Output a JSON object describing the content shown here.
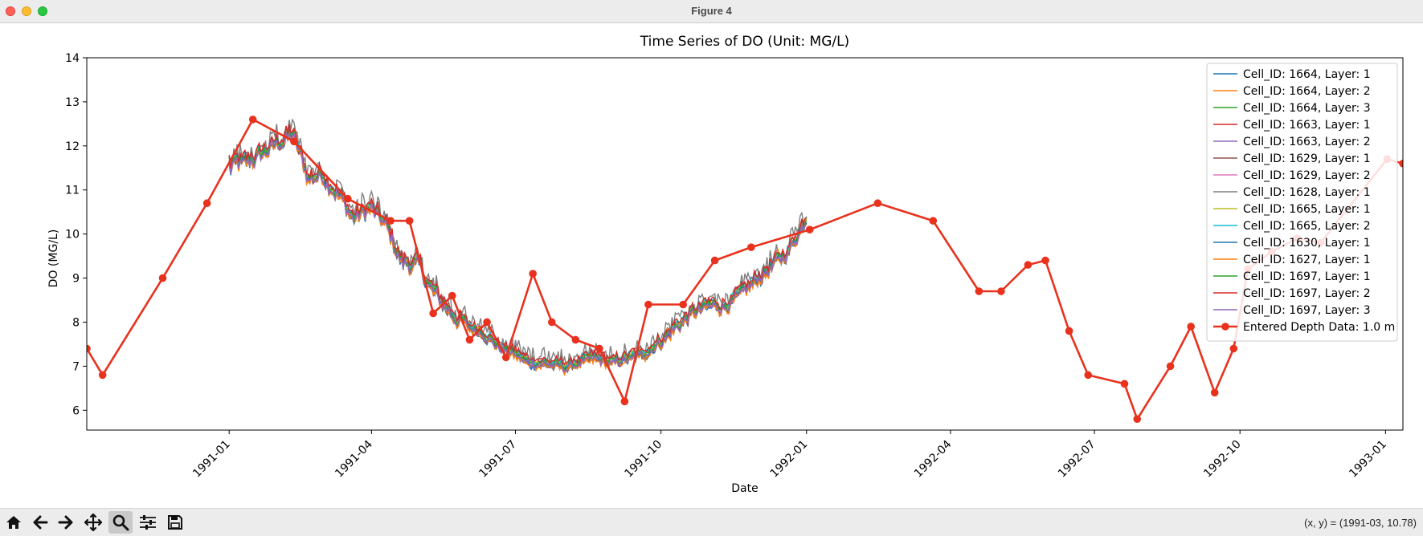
{
  "window": {
    "title": "Figure 4"
  },
  "toolbar": {
    "buttons": [
      "home-icon",
      "back-arrow-icon",
      "forward-arrow-icon",
      "pan-move-icon",
      "zoom-magnifier-icon",
      "configure-subplots-icon",
      "save-floppy-icon"
    ],
    "active": "zoom-magnifier-icon",
    "coords_text": "(x, y) = (1991-03, 10.78)"
  },
  "chart_data": {
    "type": "line",
    "title": "Time Series of DO (Unit: MG/L)",
    "xlabel": "Date",
    "ylabel": "DO (MG/L)",
    "xlim": [
      "1990-10-03",
      "1993-01-12"
    ],
    "ylim": [
      5.55,
      14
    ],
    "yticks": [
      6,
      7,
      8,
      9,
      10,
      11,
      12,
      13,
      14
    ],
    "xticks": [
      "1991-01",
      "1991-04",
      "1991-07",
      "1991-10",
      "1992-01",
      "1992-04",
      "1992-07",
      "1992-10",
      "1993-01"
    ],
    "grid": false,
    "legend_position": "upper right",
    "model_series_names": [
      "Cell_ID: 1664, Layer: 1",
      "Cell_ID: 1664, Layer: 2",
      "Cell_ID: 1664, Layer: 3",
      "Cell_ID: 1663, Layer: 1",
      "Cell_ID: 1663, Layer: 2",
      "Cell_ID: 1629, Layer: 1",
      "Cell_ID: 1629, Layer: 2",
      "Cell_ID: 1628, Layer: 1",
      "Cell_ID: 1665, Layer: 1",
      "Cell_ID: 1665, Layer: 2",
      "Cell_ID: 1630, Layer: 1",
      "Cell_ID: 1627, Layer: 1",
      "Cell_ID: 1697, Layer: 1",
      "Cell_ID: 1697, Layer: 2",
      "Cell_ID: 1697, Layer: 3"
    ],
    "model_series_colors": [
      "#1f77b4",
      "#ff7f0e",
      "#2ca02c",
      "#d62728",
      "#9467bd",
      "#8c564b",
      "#e377c2",
      "#7f7f7f",
      "#bcbd22",
      "#17becf",
      "#1f77b4",
      "#ff7f0e",
      "#2ca02c",
      "#d62728",
      "#9467bd"
    ],
    "model_common_curve": {
      "x": [
        "1991-01-01",
        "1991-01-10",
        "1991-01-20",
        "1991-02-01",
        "1991-02-10",
        "1991-02-20",
        "1991-03-01",
        "1991-03-10",
        "1991-03-20",
        "1991-04-01",
        "1991-04-10",
        "1991-04-20",
        "1991-05-01",
        "1991-05-10",
        "1991-05-20",
        "1991-06-01",
        "1991-06-10",
        "1991-06-20",
        "1991-07-01",
        "1991-07-10",
        "1991-07-20",
        "1991-08-01",
        "1991-08-10",
        "1991-08-20",
        "1991-09-01",
        "1991-09-10",
        "1991-09-20",
        "1991-10-01",
        "1991-10-10",
        "1991-10-20",
        "1991-11-01",
        "1991-11-10",
        "1991-11-20",
        "1991-12-01",
        "1991-12-10",
        "1991-12-20",
        "1992-01-01"
      ],
      "y": [
        11.6,
        11.6,
        11.8,
        12.1,
        12.3,
        11.3,
        11.4,
        11.0,
        10.4,
        10.6,
        10.2,
        9.4,
        9.3,
        8.7,
        8.3,
        7.9,
        7.8,
        7.5,
        7.3,
        7.1,
        7.1,
        7.0,
        7.1,
        7.2,
        7.1,
        7.2,
        7.3,
        7.6,
        7.9,
        8.2,
        8.4,
        8.4,
        8.6,
        9.0,
        9.3,
        9.6,
        10.4
      ]
    },
    "observed": {
      "name": "Entered Depth Data: 1.0 m",
      "color": "#e8321e",
      "x": [
        "1990-10-03",
        "1990-10-13",
        "1990-11-20",
        "1990-12-18",
        "1991-01-16",
        "1991-02-11",
        "1991-03-17",
        "1991-04-13",
        "1991-04-25",
        "1991-05-10",
        "1991-05-22",
        "1991-06-02",
        "1991-06-13",
        "1991-06-25",
        "1991-07-12",
        "1991-07-24",
        "1991-08-08",
        "1991-08-23",
        "1991-09-08",
        "1991-09-23",
        "1991-10-15",
        "1991-11-04",
        "1991-11-27",
        "1992-01-03",
        "1992-02-15",
        "1992-03-21",
        "1992-04-19",
        "1992-05-03",
        "1992-05-20",
        "1992-05-31",
        "1992-06-15",
        "1992-06-27",
        "1992-07-20",
        "1992-07-28",
        "1992-08-18",
        "1992-08-31",
        "1992-09-15",
        "1992-09-27",
        "1992-10-06",
        "1992-10-21",
        "1992-11-06",
        "1992-11-21",
        "1993-01-02",
        "1993-01-12"
      ],
      "y": [
        7.4,
        6.8,
        9.0,
        10.7,
        12.6,
        12.1,
        10.8,
        10.3,
        10.3,
        8.2,
        8.6,
        7.6,
        8.0,
        7.2,
        9.1,
        8.0,
        7.6,
        7.4,
        6.2,
        8.4,
        8.4,
        9.4,
        9.7,
        10.1,
        10.7,
        10.3,
        8.7,
        8.7,
        9.3,
        9.4,
        7.8,
        6.8,
        6.6,
        5.8,
        7.0,
        7.9,
        6.4,
        7.4,
        9.2,
        9.6,
        9.9,
        9.8,
        11.7,
        11.6
      ]
    }
  }
}
